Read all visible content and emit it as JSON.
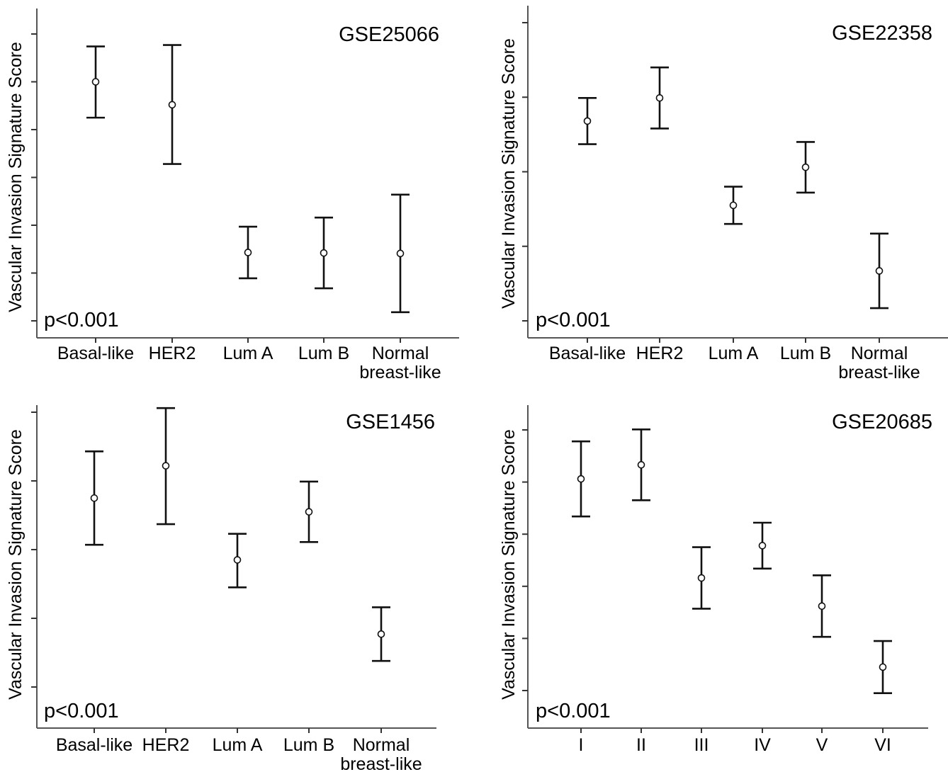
{
  "y_axis_label": "Vascular Invasion Signature Score",
  "chart_data": [
    {
      "type": "scatter",
      "title": "GSE25066",
      "annotation": "p<0.001",
      "xlabel": "",
      "ylabel": "Vascular Invasion Signature Score",
      "categories": [
        [
          "Basal-like"
        ],
        [
          "HER2"
        ],
        [
          "Lum A"
        ],
        [
          "Lum B"
        ],
        [
          "Normal",
          "breast-like"
        ]
      ],
      "ylim": [
        0,
        6.2
      ],
      "yticks": [
        0,
        1,
        2,
        3,
        4,
        5,
        6
      ],
      "series": [
        {
          "mean": [
            5.0,
            4.52,
            1.43,
            1.42,
            1.41
          ],
          "lower": [
            4.25,
            3.28,
            0.89,
            0.68,
            0.18
          ],
          "upper": [
            5.74,
            5.77,
            1.97,
            2.16,
            2.64
          ]
        }
      ]
    },
    {
      "type": "scatter",
      "title": "GSE22358",
      "annotation": "p<0.001",
      "xlabel": "",
      "ylabel": "Vascular Invasion Signature Score",
      "categories": [
        [
          "Basal-like"
        ],
        [
          "HER2"
        ],
        [
          "Lum A"
        ],
        [
          "Lum B"
        ],
        [
          "Normal",
          "breast-like"
        ]
      ],
      "ylim": [
        0,
        4.2
      ],
      "yticks": [
        0,
        1,
        2,
        3,
        4
      ],
      "series": [
        {
          "mean": [
            2.68,
            2.99,
            1.55,
            2.06,
            0.67
          ],
          "lower": [
            2.37,
            2.58,
            1.3,
            1.72,
            0.17
          ],
          "upper": [
            2.99,
            3.4,
            1.8,
            2.4,
            1.17
          ]
        }
      ]
    },
    {
      "type": "scatter",
      "title": "GSE1456",
      "annotation": "p<0.001",
      "xlabel": "",
      "ylabel": "Vascular Invasion Signature Score",
      "categories": [
        [
          "Basal-like"
        ],
        [
          "HER2"
        ],
        [
          "Lum A"
        ],
        [
          "Lum B"
        ],
        [
          "Normal",
          "breast-like"
        ]
      ],
      "ylim": [
        0,
        4.6
      ],
      "yticks": [
        0,
        1,
        2,
        3,
        4
      ],
      "series": [
        {
          "mean": [
            2.75,
            3.22,
            1.85,
            2.55,
            0.77
          ],
          "lower": [
            2.07,
            2.37,
            1.45,
            2.11,
            0.38
          ],
          "upper": [
            3.43,
            4.06,
            2.23,
            2.99,
            1.16
          ]
        }
      ]
    },
    {
      "type": "scatter",
      "title": "GSE20685",
      "annotation": "p<0.001",
      "xlabel": "",
      "ylabel": "Vascular Invasion Signature Score",
      "categories": [
        [
          "I"
        ],
        [
          "II"
        ],
        [
          "III"
        ],
        [
          "IV"
        ],
        [
          "V"
        ],
        [
          "VI"
        ]
      ],
      "ylim": [
        0,
        5.5
      ],
      "yticks": [
        0,
        1,
        2,
        3,
        4,
        5
      ],
      "series": [
        {
          "mean": [
            4.06,
            4.33,
            2.16,
            2.78,
            1.62,
            0.45
          ],
          "lower": [
            3.34,
            3.65,
            1.57,
            2.34,
            1.03,
            -0.05
          ],
          "upper": [
            4.78,
            5.01,
            2.75,
            3.22,
            2.21,
            0.95
          ]
        }
      ]
    }
  ]
}
